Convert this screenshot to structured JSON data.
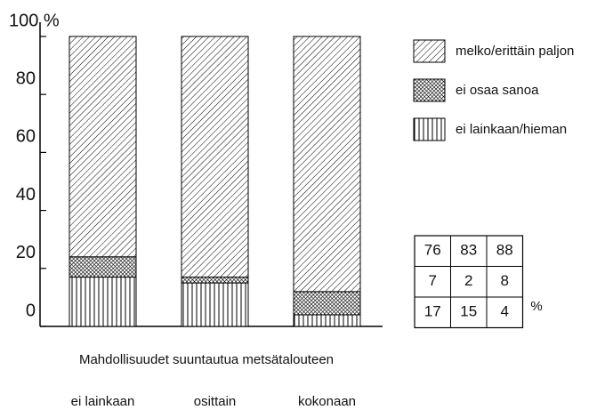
{
  "chart_data": {
    "type": "stacked_bar",
    "categories": [
      "ei lainkaan",
      "osittain",
      "kokonaan"
    ],
    "xlabel": "Mahdollisuudet suuntautua metsätalouteen",
    "series": [
      {
        "name": "ei lainkaan/hieman",
        "color": "#000000",
        "pattern": "vertical",
        "values": [
          17,
          15,
          4
        ]
      },
      {
        "name": "ei osaa sanoa",
        "color": "#000000",
        "pattern": "crosshatch",
        "values": [
          7,
          2,
          8
        ]
      },
      {
        "name": "melko/erittäin paljon",
        "color": "#000000",
        "pattern": "diagonal",
        "values": [
          76,
          83,
          88
        ]
      }
    ],
    "ylim": [
      0,
      100
    ],
    "yticks": [
      0,
      20,
      40,
      60,
      80,
      {
        "value": 100,
        "label": "100 %"
      }
    ],
    "table_unit": "%"
  }
}
